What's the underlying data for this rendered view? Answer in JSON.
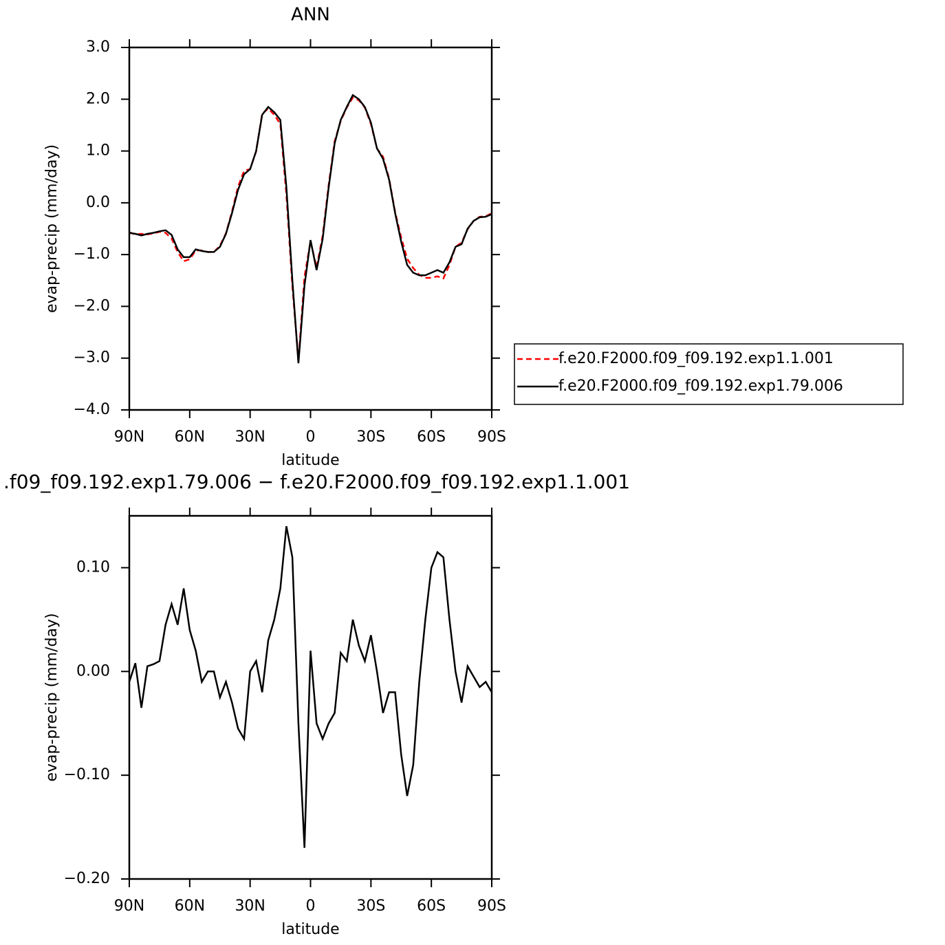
{
  "chart_data": [
    {
      "type": "line",
      "title": "ANN",
      "xlabel": "latitude",
      "ylabel": "evap-precip (mm/day)",
      "x": [
        90,
        87,
        84,
        81,
        78,
        75,
        72,
        69,
        66,
        63,
        60,
        57,
        54,
        51,
        48,
        45,
        42,
        39,
        36,
        33,
        30,
        27,
        24,
        21,
        18,
        15,
        12,
        9,
        6,
        3,
        0,
        -3,
        -6,
        -9,
        -12,
        -15,
        -18,
        -21,
        -24,
        -27,
        -30,
        -33,
        -36,
        -39,
        -42,
        -45,
        -48,
        -51,
        -54,
        -57,
        -60,
        -63,
        -66,
        -69,
        -72,
        -75,
        -78,
        -81,
        -84,
        -87,
        -90
      ],
      "series": [
        {
          "name": "f.e20.F2000.f09_f09.192.exp1.1.001",
          "color": "#ff0000",
          "style": "dashed",
          "values": [
            -0.57,
            -0.61,
            -0.6,
            -0.61,
            -0.59,
            -0.56,
            -0.58,
            -0.69,
            -0.95,
            -1.13,
            -1.09,
            -0.92,
            -0.92,
            -0.95,
            -0.95,
            -0.83,
            -0.59,
            -0.17,
            0.31,
            0.62,
            0.65,
            0.99,
            1.72,
            1.82,
            1.7,
            1.52,
            0.16,
            -1.61,
            -3.05,
            -1.43,
            -0.74,
            -1.25,
            -0.64,
            0.35,
            1.19,
            1.58,
            1.84,
            2.03,
            1.98,
            1.84,
            1.52,
            1.05,
            0.89,
            0.47,
            -0.18,
            -0.67,
            -1.08,
            -1.26,
            -1.39,
            -1.45,
            -1.45,
            -1.42,
            -1.46,
            -1.2,
            -0.85,
            -0.77,
            -0.51,
            -0.35,
            -0.27,
            -0.26,
            -0.2
          ]
        },
        {
          "name": "f.e20.F2000.f09_f09.192.exp1.79.006",
          "color": "#000000",
          "style": "solid",
          "values": [
            -0.58,
            -0.6,
            -0.63,
            -0.6,
            -0.58,
            -0.55,
            -0.53,
            -0.62,
            -0.9,
            -1.05,
            -1.05,
            -0.9,
            -0.93,
            -0.95,
            -0.95,
            -0.85,
            -0.6,
            -0.2,
            0.25,
            0.55,
            0.65,
            1.0,
            1.7,
            1.85,
            1.75,
            1.6,
            0.3,
            -1.5,
            -3.1,
            -1.6,
            -0.72,
            -1.3,
            -0.7,
            0.3,
            1.15,
            1.6,
            1.85,
            2.08,
            2.0,
            1.85,
            1.55,
            1.05,
            0.85,
            0.45,
            -0.2,
            -0.75,
            -1.2,
            -1.35,
            -1.4,
            -1.4,
            -1.35,
            -1.3,
            -1.35,
            -1.15,
            -0.85,
            -0.8,
            -0.5,
            -0.35,
            -0.28,
            -0.27,
            -0.22
          ]
        }
      ],
      "xlim": [
        90,
        -90
      ],
      "xticks": [
        {
          "value": 90,
          "label": "90N"
        },
        {
          "value": 60,
          "label": "60N"
        },
        {
          "value": 30,
          "label": "30N"
        },
        0,
        {
          "value": -30,
          "label": "30S"
        },
        {
          "value": -60,
          "label": "60S"
        },
        {
          "value": -90,
          "label": "90S"
        }
      ],
      "ylim": [
        -4,
        3
      ],
      "yticks": [
        {
          "value": -4,
          "label": "−4.0"
        },
        {
          "value": -3,
          "label": "−3.0"
        },
        {
          "value": -2,
          "label": "−2.0"
        },
        {
          "value": -1,
          "label": "−1.0"
        },
        {
          "value": 0,
          "label": "0.0"
        },
        {
          "value": 1,
          "label": "1.0"
        },
        {
          "value": 2,
          "label": "2.0"
        },
        {
          "value": 3,
          "label": "3.0"
        }
      ],
      "legend": "right"
    },
    {
      "type": "line",
      "title": ".f09_f09.192.exp1.79.006 − f.e20.F2000.f09_f09.192.exp1.1.001",
      "xlabel": "latitude",
      "ylabel": "evap-precip (mm/day)",
      "x": [
        90,
        87,
        84,
        81,
        78,
        75,
        72,
        69,
        66,
        63,
        60,
        57,
        54,
        51,
        48,
        45,
        42,
        39,
        36,
        33,
        30,
        27,
        24,
        21,
        18,
        15,
        12,
        9,
        6,
        3,
        0,
        -3,
        -6,
        -9,
        -12,
        -15,
        -18,
        -21,
        -24,
        -27,
        -30,
        -33,
        -36,
        -39,
        -42,
        -45,
        -48,
        -51,
        -54,
        -57,
        -60,
        -63,
        -66,
        -69,
        -72,
        -75,
        -78,
        -81,
        -84,
        -87,
        -90
      ],
      "color": "#000000",
      "values": [
        -0.01,
        0.008,
        -0.035,
        0.005,
        0.007,
        0.01,
        0.045,
        0.065,
        0.045,
        0.08,
        0.04,
        0.02,
        -0.01,
        0.0,
        0.0,
        -0.025,
        -0.01,
        -0.03,
        -0.055,
        -0.065,
        0.0,
        0.01,
        -0.02,
        0.03,
        0.05,
        0.08,
        0.14,
        0.11,
        -0.05,
        -0.17,
        0.02,
        -0.05,
        -0.065,
        -0.05,
        -0.04,
        0.018,
        0.01,
        0.05,
        0.025,
        0.01,
        0.035,
        0.0,
        -0.04,
        -0.02,
        -0.02,
        -0.08,
        -0.12,
        -0.09,
        -0.01,
        0.05,
        0.1,
        0.115,
        0.11,
        0.05,
        0.0,
        -0.03,
        0.005,
        -0.005,
        -0.015,
        -0.01,
        -0.02
      ],
      "xlim": [
        90,
        -90
      ],
      "xticks": [
        {
          "value": 90,
          "label": "90N"
        },
        {
          "value": 60,
          "label": "60N"
        },
        {
          "value": 30,
          "label": "30N"
        },
        0,
        {
          "value": -30,
          "label": "30S"
        },
        {
          "value": -60,
          "label": "60S"
        },
        {
          "value": -90,
          "label": "90S"
        }
      ],
      "ylim": [
        -0.2,
        0.15
      ],
      "yticks": [
        {
          "value": -0.2,
          "label": "−0.20"
        },
        {
          "value": -0.1,
          "label": "−0.10"
        },
        {
          "value": 0,
          "label": "0.00"
        },
        {
          "value": 0.1,
          "label": "0.10"
        }
      ]
    }
  ]
}
